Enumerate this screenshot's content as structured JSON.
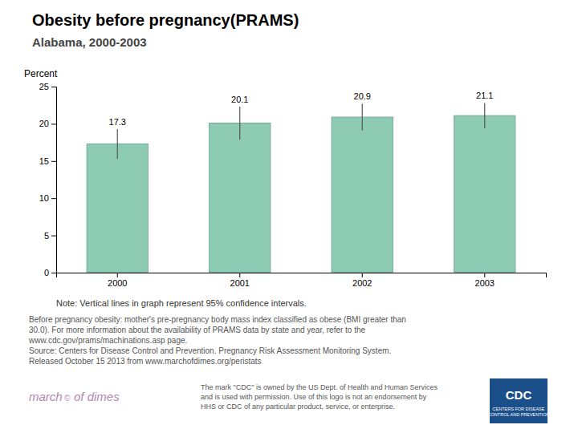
{
  "chart_data": {
    "type": "bar",
    "title": "Obesity before pregnancy(PRAMS)",
    "subtitle": "Alabama, 2000-2003",
    "ylabel": "Percent",
    "categories": [
      "2000",
      "2001",
      "2002",
      "2003"
    ],
    "values": [
      17.3,
      20.1,
      20.9,
      21.1
    ],
    "errors_low": [
      2.0,
      2.2,
      1.8,
      1.7
    ],
    "errors_high": [
      2.0,
      2.2,
      1.8,
      1.7
    ],
    "color": "#8ECBB4",
    "ylim": [
      0,
      25
    ],
    "yticks": [
      0,
      5,
      10,
      15,
      20,
      25
    ],
    "grid": false,
    "data_labels": true,
    "note": "Note: Vertical lines in graph represent 95% confidence intervals.",
    "footnote": [
      "Before pregnancy obesity: mother's pre-pregnancy body mass index classified as obese (BMI greater than",
      "30.0). For more information about the availability of PRAMS data by state and year, refer to the",
      "www.cdc.gov/prams/machinations.asp page.",
      "Source: Centers for Disease Control and Prevention. Pregnancy Risk Assessment Monitoring System.",
      "Released October 15 2013 from www.marchofdimes.org/peristats"
    ],
    "annotations": [
      "The mark \"CDC\" is owned by the US Dept. of Health and Human Services",
      "and is used with permission. Use of this logo is not an endorsement by",
      "HHS or CDC of any particular product, service, or enterprise.",
      "march",
      "©",
      "of dimes",
      "CDC",
      "CENTERS FOR DISEASE",
      "CONTROL AND PREVENTION"
    ]
  }
}
